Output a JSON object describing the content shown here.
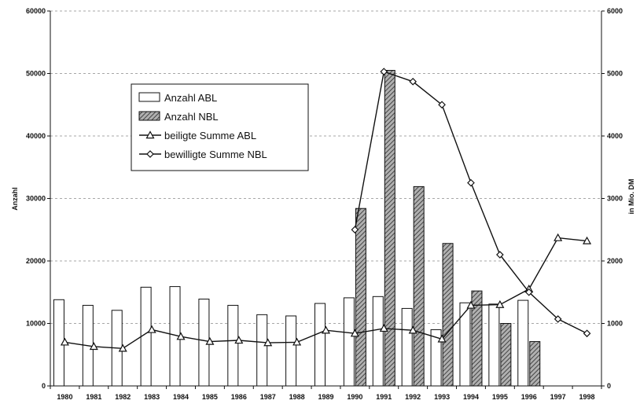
{
  "chart_data": {
    "type": "bar",
    "title": "",
    "xlabel": "",
    "ylabel": "Anzahl",
    "y2label": "in Mio. DM",
    "ylim": [
      0,
      60000
    ],
    "y2lim": [
      0,
      6000
    ],
    "yticks": [
      "0",
      "10000",
      "20000",
      "30000",
      "40000",
      "50000",
      "60000"
    ],
    "y2ticks": [
      "0",
      "1000",
      "2000",
      "3000",
      "4000",
      "5000",
      "6000"
    ],
    "grid": "horizontal dashed",
    "legend_position": "upper-left inside plot",
    "categories": [
      "1980",
      "1981",
      "1982",
      "1983",
      "1984",
      "1985",
      "1986",
      "1987",
      "1988",
      "1989",
      "1990",
      "1991",
      "1992",
      "1993",
      "1994",
      "1995",
      "1996",
      "1997",
      "1998"
    ],
    "series": [
      {
        "name": "Anzahl ABL",
        "kind": "bar",
        "axis": "left",
        "fill": "white",
        "values": [
          13800,
          12900,
          12100,
          15800,
          15900,
          13900,
          12900,
          11400,
          11200,
          13200,
          14100,
          14300,
          12400,
          9000,
          13300,
          13100,
          13700,
          null,
          null
        ]
      },
      {
        "name": "Anzahl NBL",
        "kind": "bar",
        "axis": "left",
        "fill": "hatched",
        "values": [
          null,
          null,
          null,
          null,
          null,
          null,
          null,
          null,
          null,
          null,
          28400,
          50500,
          31900,
          22800,
          15200,
          10000,
          7100,
          null,
          null
        ]
      },
      {
        "name": "beiligte Summe ABL",
        "kind": "line",
        "axis": "right",
        "marker": "triangle",
        "values": [
          700,
          630,
          600,
          900,
          790,
          710,
          730,
          690,
          700,
          890,
          840,
          920,
          890,
          750,
          1290,
          1300,
          1550,
          2370,
          2320
        ]
      },
      {
        "name": "bewilligte Summe NBL",
        "kind": "line",
        "axis": "right",
        "marker": "diamond",
        "values": [
          null,
          null,
          null,
          null,
          null,
          null,
          null,
          null,
          null,
          null,
          2500,
          5030,
          4870,
          4500,
          3250,
          2100,
          1500,
          1070,
          840
        ]
      }
    ],
    "colors": {
      "stroke": "#111111",
      "bar_fill": "#ffffff",
      "hatch": "#444444",
      "hatch_bg": "#b0b0b0",
      "grid": "#8a8a8a"
    }
  }
}
